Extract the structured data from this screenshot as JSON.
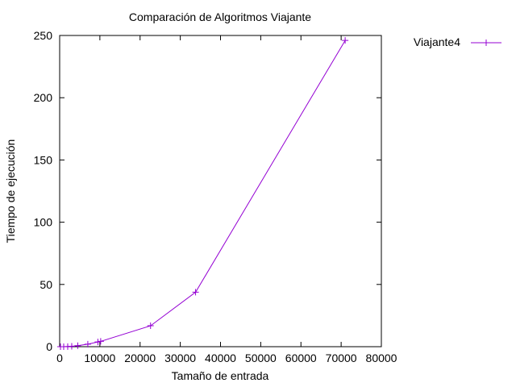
{
  "chart_data": {
    "type": "line",
    "title": "Comparación de Algoritmos Viajante",
    "xlabel": "Tamaño de entrada",
    "ylabel": "Tiempo de ejecución",
    "xlim": [
      0,
      80000
    ],
    "ylim": [
      0,
      250
    ],
    "x_ticks": [
      0,
      10000,
      20000,
      30000,
      40000,
      50000,
      60000,
      70000,
      80000
    ],
    "y_ticks": [
      0,
      50,
      100,
      150,
      200,
      250
    ],
    "grid": false,
    "legend_position": "outside-top-right",
    "series": [
      {
        "name": "Viajante4",
        "color": "#9400d3",
        "marker": "plus",
        "x": [
          200,
          1000,
          2000,
          3000,
          4500,
          7000,
          9500,
          10200,
          22600,
          33800,
          71000
        ],
        "y": [
          0,
          0,
          0.1,
          0.3,
          0.8,
          2.0,
          3.8,
          4.3,
          16.8,
          43.8,
          246
        ]
      }
    ]
  }
}
